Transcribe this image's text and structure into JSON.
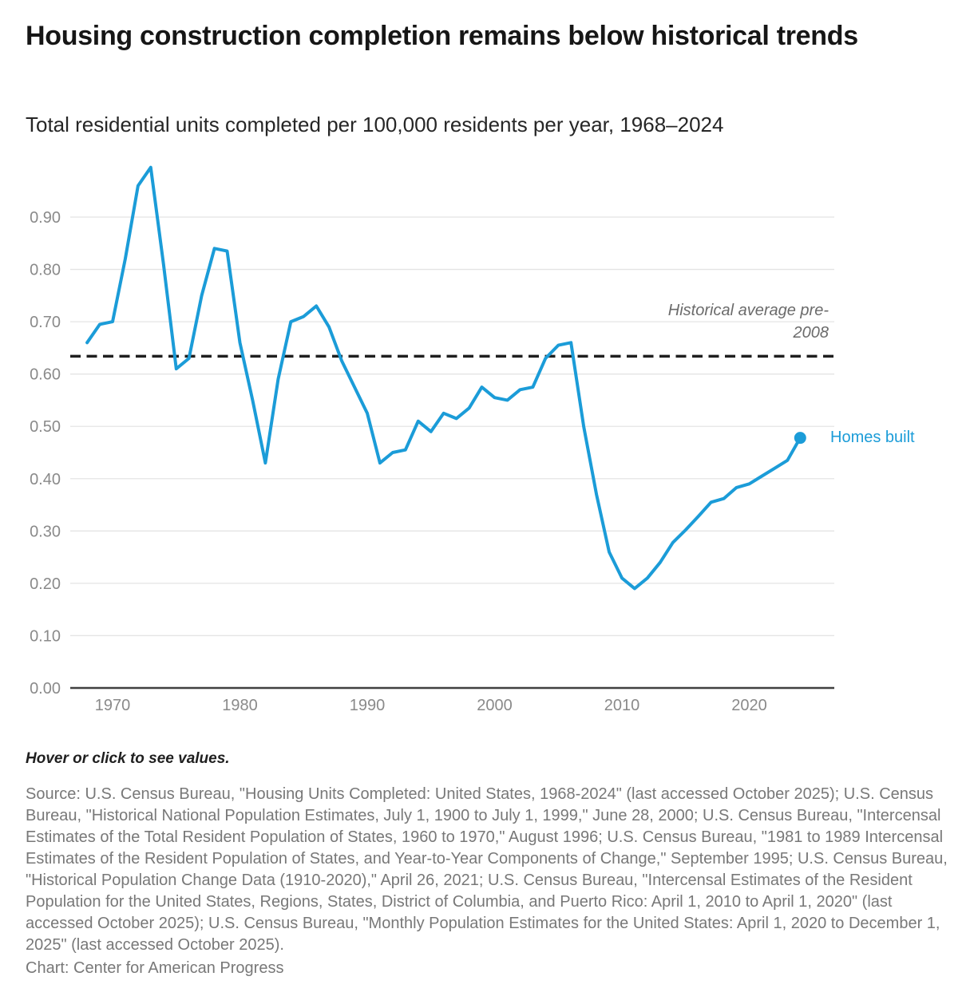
{
  "header": {
    "title": "Housing construction completion remains below historical trends",
    "subtitle": "Total residential units completed per 100,000 residents per year, 1968–2024"
  },
  "chart_data": {
    "type": "line",
    "title": "Housing construction completion remains below historical trends",
    "subtitle": "Total residential units completed per 100,000 residents per year, 1968–2024",
    "xlabel": "",
    "ylabel": "",
    "xlim": [
      1966.9,
      2026.6
    ],
    "ylim": [
      0.0,
      1.0
    ],
    "grid": "horizontal",
    "legend_position": "end-of-line-label",
    "x_ticks": [
      1970,
      1980,
      1990,
      2000,
      2010,
      2020
    ],
    "y_ticks": [
      0.0,
      0.1,
      0.2,
      0.3,
      0.4,
      0.5,
      0.6,
      0.7,
      0.8,
      0.9
    ],
    "years": [
      1968,
      1969,
      1970,
      1971,
      1972,
      1973,
      1974,
      1975,
      1976,
      1977,
      1978,
      1979,
      1980,
      1981,
      1982,
      1983,
      1984,
      1985,
      1986,
      1987,
      1988,
      1989,
      1990,
      1991,
      1992,
      1993,
      1994,
      1995,
      1996,
      1997,
      1998,
      1999,
      2000,
      2001,
      2002,
      2003,
      2004,
      2005,
      2006,
      2007,
      2008,
      2009,
      2010,
      2011,
      2012,
      2013,
      2014,
      2015,
      2016,
      2017,
      2018,
      2019,
      2020,
      2021,
      2022,
      2023,
      2024
    ],
    "series": [
      {
        "name": "Homes built",
        "values": [
          0.66,
          0.695,
          0.7,
          0.82,
          0.96,
          0.995,
          0.81,
          0.61,
          0.63,
          0.75,
          0.84,
          0.835,
          0.66,
          0.55,
          0.43,
          0.59,
          0.7,
          0.71,
          0.73,
          0.69,
          0.625,
          0.575,
          0.525,
          0.43,
          0.45,
          0.455,
          0.51,
          0.49,
          0.525,
          0.515,
          0.535,
          0.575,
          0.555,
          0.55,
          0.57,
          0.575,
          0.63,
          0.655,
          0.66,
          0.5,
          0.37,
          0.26,
          0.21,
          0.19,
          0.21,
          0.24,
          0.278,
          0.302,
          0.328,
          0.355,
          0.362,
          0.383,
          0.39,
          0.405,
          0.42,
          0.435,
          0.478
        ]
      }
    ],
    "average_line": {
      "value": 0.634,
      "label": "Historical average pre-2008",
      "label_line1": "Historical average pre-",
      "label_line2": "2008"
    },
    "end_point_marker": true,
    "colors": {
      "line": "#1b9cd8",
      "average_dash": "#1f1f1f",
      "grid": "#e4e4e4",
      "axis": "#404040",
      "tick_text": "#8a8a8a"
    }
  },
  "footer": {
    "hover_note": "Hover or click to see values.",
    "source": "Source: U.S. Census Bureau, \"Housing Units Completed: United States, 1968-2024\" (last accessed October 2025); U.S. Census Bureau, \"Historical National Population Estimates, July 1, 1900 to July 1, 1999,\" June 28, 2000; U.S. Census Bureau, \"Intercensal Estimates of the Total Resident Population of States, 1960 to 1970,\" August 1996; U.S. Census Bureau, \"1981 to 1989 Intercensal Estimates of the Resident Population of States, and Year-to-Year Components of Change,\" September 1995; U.S. Census Bureau, \"Historical Population Change Data (1910-2020),\" April 26, 2021; U.S. Census Bureau, \"Intercensal Estimates of the Resident Population for the United States, Regions, States, District of Columbia, and Puerto Rico: April 1, 2010 to April 1, 2020\" (last accessed October 2025); U.S. Census Bureau, \"Monthly Population Estimates for the United States: April 1, 2020 to December 1, 2025\" (last accessed October 2025).",
    "credit": "Chart: Center for American Progress"
  }
}
